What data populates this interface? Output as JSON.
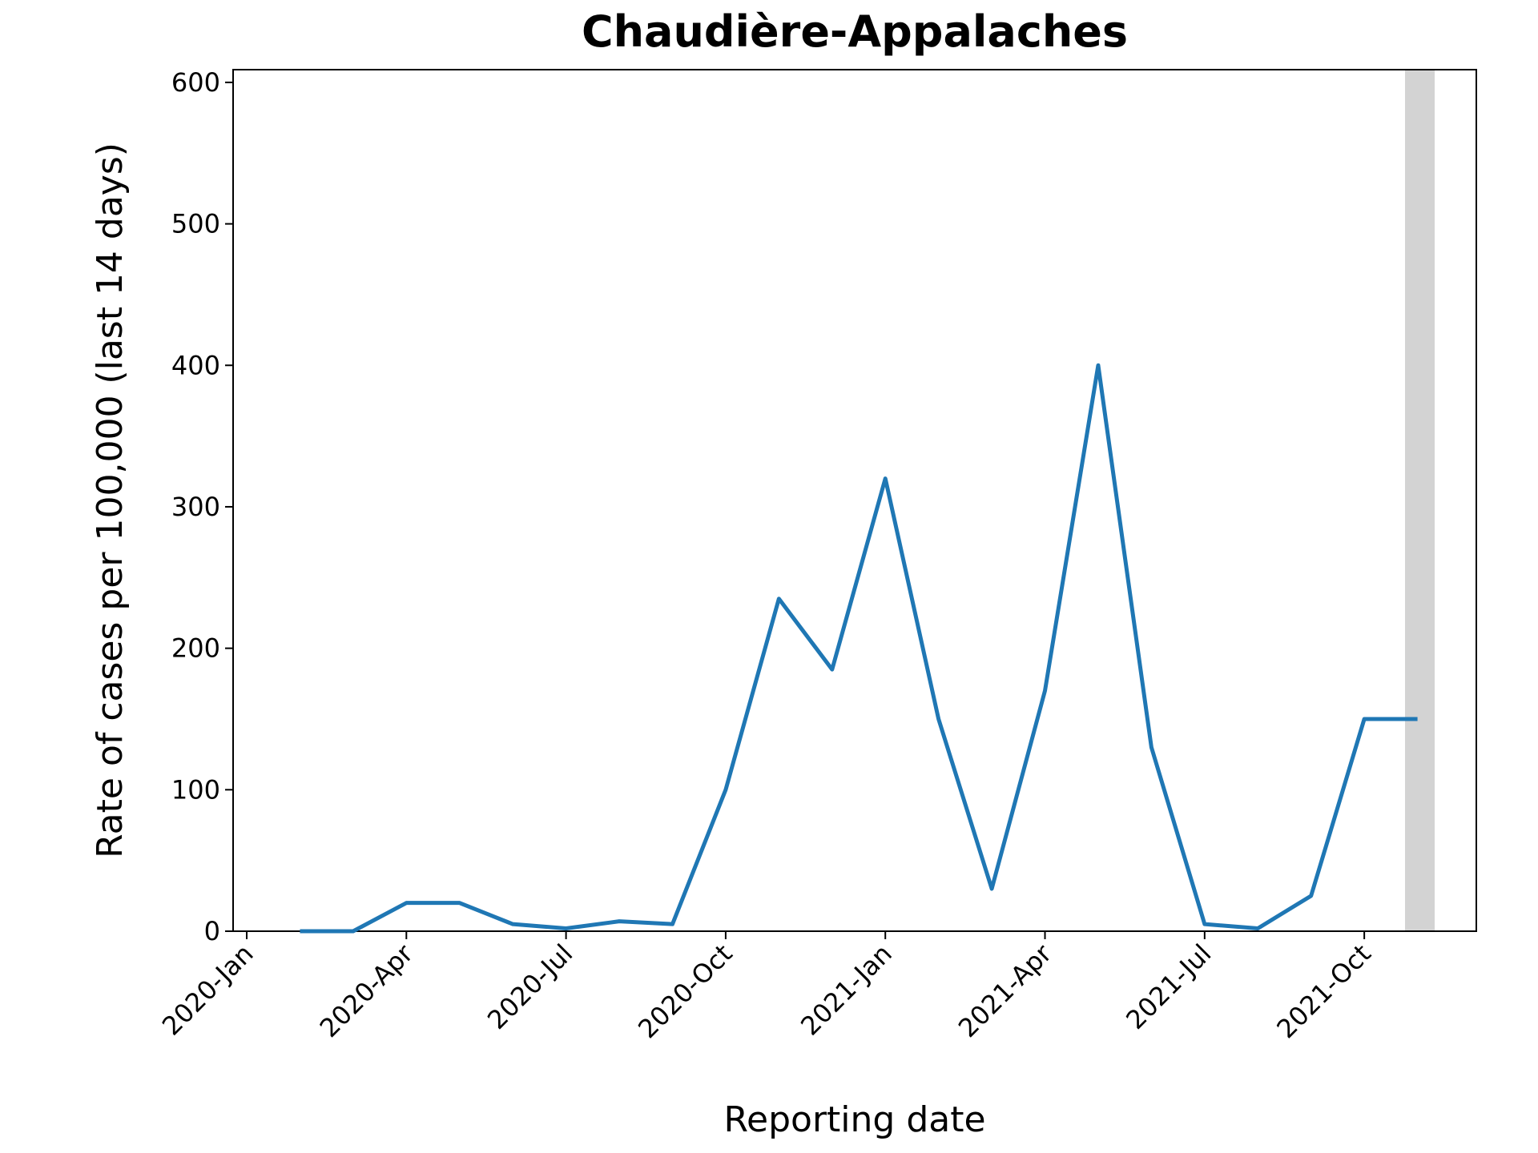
{
  "chart_data": {
    "type": "line",
    "title": "Chaudière-Appalaches",
    "x_label": "Reporting date",
    "y_label": "Rate of cases per 100,000 (last 14 days)",
    "x": [
      "2020-02",
      "2020-03",
      "2020-04",
      "2020-05",
      "2020-06",
      "2020-07",
      "2020-08",
      "2020-09",
      "2020-10",
      "2020-11",
      "2020-12",
      "2021-01",
      "2021-02",
      "2021-03",
      "2021-04",
      "2021-05",
      "2021-06",
      "2021-07",
      "2021-08",
      "2021-09",
      "2021-10",
      "2021-11"
    ],
    "series": [
      {
        "name": "Chaudière-Appalaches",
        "color": "#1f77b4",
        "values": [
          0,
          0,
          20,
          20,
          5,
          2,
          7,
          5,
          100,
          235,
          185,
          320,
          150,
          30,
          170,
          400,
          130,
          5,
          2,
          25,
          150,
          150
        ]
      }
    ],
    "xlim": [
      "2020-01",
      "2021-12"
    ],
    "xticks": [
      {
        "value": "2020-01",
        "label": "2020-Jan"
      },
      {
        "value": "2020-04",
        "label": "2020-Apr"
      },
      {
        "value": "2020-07",
        "label": "2020-Jul"
      },
      {
        "value": "2020-10",
        "label": "2020-Oct"
      },
      {
        "value": "2021-01",
        "label": "2021-Jan"
      },
      {
        "value": "2021-04",
        "label": "2021-Apr"
      },
      {
        "value": "2021-07",
        "label": "2021-Jul"
      },
      {
        "value": "2021-10",
        "label": "2021-Oct"
      }
    ],
    "ylim": [
      0,
      609
    ],
    "yticks": [
      0,
      100,
      200,
      300,
      400,
      500,
      600
    ],
    "grid": false
  }
}
